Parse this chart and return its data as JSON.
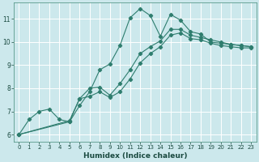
{
  "xlabel": "Humidex (Indice chaleur)",
  "background_color": "#cce8ec",
  "grid_color": "#b0d4d8",
  "line_color": "#2e7d6e",
  "xlim": [
    -0.5,
    23.5
  ],
  "ylim": [
    5.7,
    11.7
  ],
  "yticks": [
    6,
    7,
    8,
    9,
    10,
    11
  ],
  "xticks": [
    0,
    1,
    2,
    3,
    4,
    5,
    6,
    7,
    8,
    9,
    10,
    11,
    12,
    13,
    14,
    15,
    16,
    17,
    18,
    19,
    20,
    21,
    22,
    23
  ],
  "lines": [
    {
      "x": [
        0,
        1,
        2,
        3,
        4,
        5,
        6,
        7,
        8,
        9,
        10,
        11,
        12,
        13,
        14,
        15,
        16,
        17,
        18,
        19,
        20,
        21,
        22,
        23
      ],
      "y": [
        6.0,
        6.65,
        7.0,
        7.1,
        6.65,
        6.55,
        7.25,
        7.85,
        8.8,
        9.05,
        9.85,
        11.05,
        11.45,
        11.15,
        10.25,
        11.2,
        10.95,
        10.45,
        10.35,
        10.0,
        9.95,
        9.9,
        9.85,
        9.8
      ]
    },
    {
      "x": [
        0,
        5,
        6,
        7,
        8,
        9,
        10,
        11,
        12,
        13,
        14,
        15,
        16,
        17,
        18,
        19,
        20,
        21,
        22,
        23
      ],
      "y": [
        6.0,
        6.6,
        7.55,
        8.0,
        8.05,
        7.7,
        8.2,
        8.8,
        9.5,
        9.8,
        10.05,
        10.55,
        10.55,
        10.3,
        10.2,
        10.1,
        10.0,
        9.9,
        9.85,
        9.8
      ]
    },
    {
      "x": [
        0,
        5,
        6,
        7,
        8,
        9,
        10,
        11,
        12,
        13,
        14,
        15,
        16,
        17,
        18,
        19,
        20,
        21,
        22,
        23
      ],
      "y": [
        6.0,
        6.55,
        7.55,
        7.65,
        7.85,
        7.6,
        7.85,
        8.4,
        9.1,
        9.5,
        9.8,
        10.3,
        10.4,
        10.15,
        10.1,
        9.95,
        9.85,
        9.8,
        9.75,
        9.75
      ]
    }
  ]
}
